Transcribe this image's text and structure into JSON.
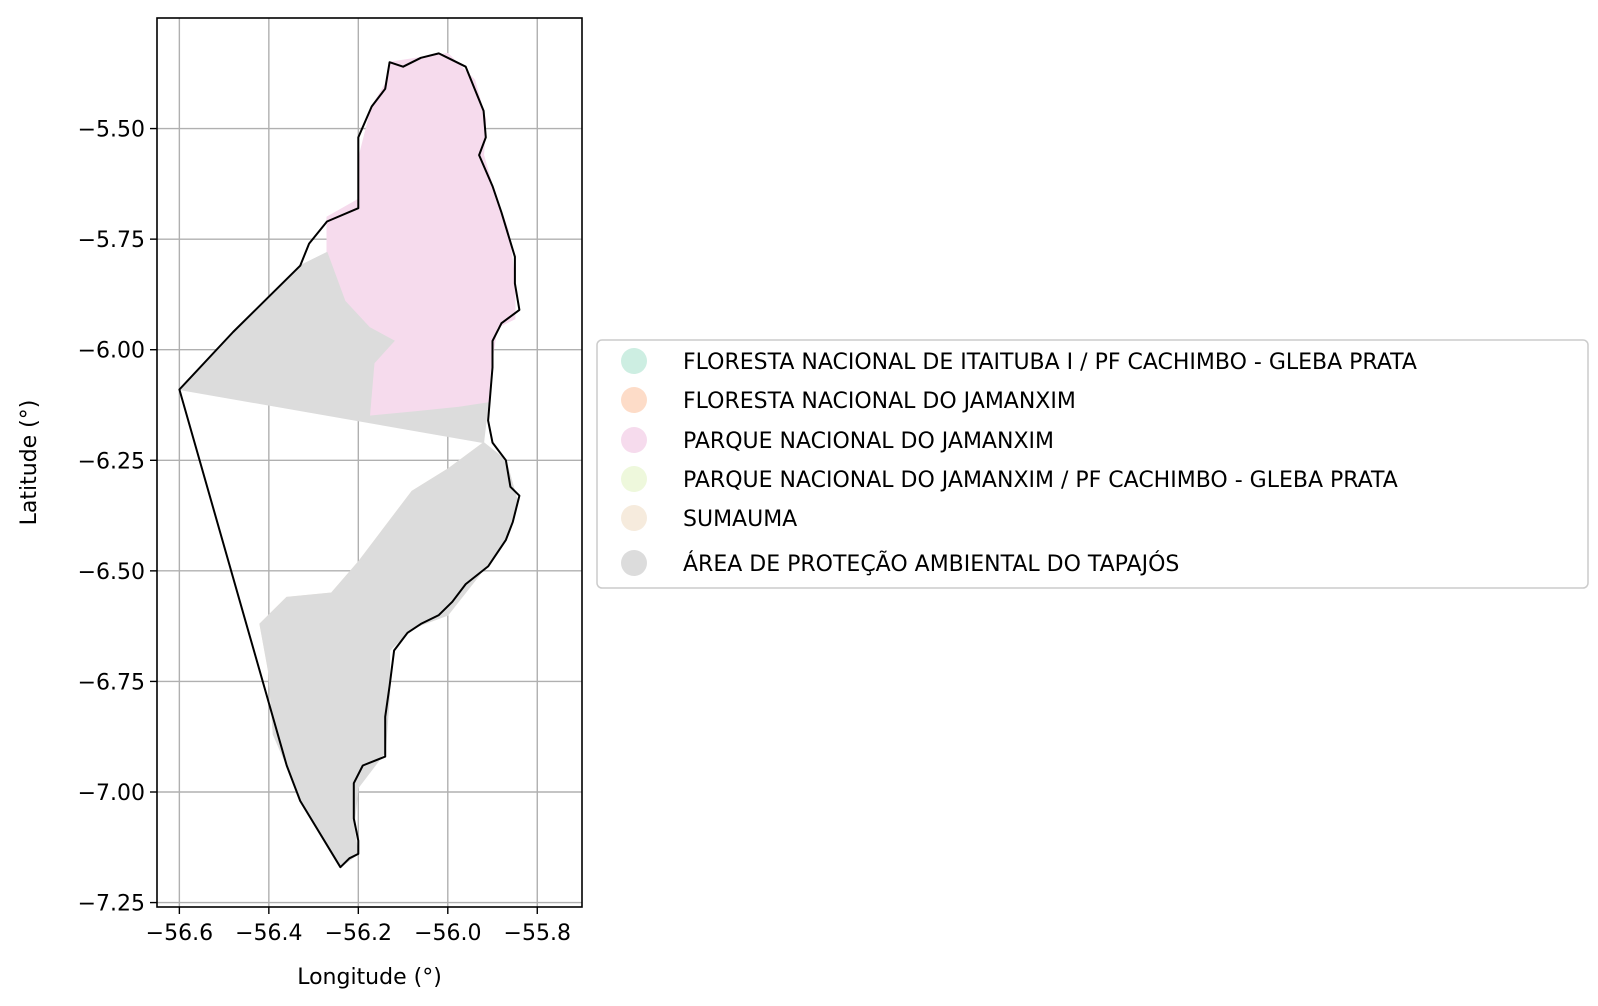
{
  "chart_data": {
    "type": "map",
    "title": "",
    "xlabel": "Longitude (°)",
    "ylabel": "Latitude (°)",
    "xlim": [
      -56.65,
      -55.7
    ],
    "ylim": [
      -7.26,
      -5.25
    ],
    "xticks": [
      -56.6,
      -56.4,
      -56.2,
      -56.0,
      -55.8
    ],
    "xtick_labels": [
      "−56.6",
      "−56.4",
      "−56.2",
      "−56.0",
      "−55.8"
    ],
    "yticks": [
      -5.5,
      -5.75,
      -6.0,
      -6.25,
      -6.5,
      -6.75,
      -7.0,
      -7.25
    ],
    "ytick_labels": [
      "−5.50",
      "−5.75",
      "−6.00",
      "−6.25",
      "−6.50",
      "−6.75",
      "−7.00",
      "−7.25"
    ],
    "grid": true,
    "legend_position": "right-center",
    "categories": [
      {
        "name": "FLORESTA NACIONAL DE ITAITUBA I / PF CACHIMBO - GLEBA PRATA",
        "color": "#cdeee2"
      },
      {
        "name": "FLORESTA NACIONAL DO JAMANXIM",
        "color": "#fddcc8"
      },
      {
        "name": "PARQUE NACIONAL DO JAMANXIM",
        "color": "#f6dbed"
      },
      {
        "name": "PARQUE NACIONAL DO JAMANXIM / PF CACHIMBO - GLEBA PRATA",
        "color": "#eef8dc"
      },
      {
        "name": "SUMAUMA",
        "color": "#f6ebdd"
      },
      {
        "name": "ÁREA DE PROTEÇÃO AMBIENTAL DO TAPAJÓS",
        "color": "#dcdcdc"
      }
    ],
    "regions": [
      {
        "name": "PARQUE NACIONAL DO JAMANXIM",
        "color": "#f6dbed",
        "coords": [
          [
            -56.13,
            -5.35
          ],
          [
            -56.0,
            -5.33
          ],
          [
            -55.94,
            -5.39
          ],
          [
            -55.915,
            -5.48
          ],
          [
            -55.92,
            -5.56
          ],
          [
            -55.9,
            -5.63
          ],
          [
            -55.865,
            -5.73
          ],
          [
            -55.85,
            -5.84
          ],
          [
            -55.85,
            -5.93
          ],
          [
            -55.89,
            -5.95
          ],
          [
            -55.905,
            -6.05
          ],
          [
            -55.91,
            -6.12
          ],
          [
            -55.975,
            -6.13
          ],
          [
            -56.07,
            -6.14
          ],
          [
            -56.175,
            -6.15
          ],
          [
            -56.165,
            -6.03
          ],
          [
            -56.12,
            -5.98
          ],
          [
            -56.175,
            -5.95
          ],
          [
            -56.23,
            -5.89
          ],
          [
            -56.27,
            -5.78
          ],
          [
            -56.27,
            -5.7
          ],
          [
            -56.2,
            -5.66
          ],
          [
            -56.2,
            -5.57
          ],
          [
            -56.17,
            -5.45
          ],
          [
            -56.14,
            -5.4
          ]
        ]
      },
      {
        "name": "SUMAUMA",
        "color": "#f6ebdd",
        "coords": [
          [
            -55.92,
            -6.21
          ],
          [
            -55.87,
            -6.25
          ],
          [
            -55.845,
            -6.34
          ],
          [
            -55.87,
            -6.43
          ],
          [
            -55.93,
            -6.51
          ],
          [
            -56.0,
            -6.6
          ],
          [
            -56.08,
            -6.63
          ],
          [
            -56.13,
            -6.68
          ],
          [
            -56.2,
            -6.73
          ],
          [
            -56.27,
            -6.78
          ],
          [
            -56.32,
            -6.83
          ],
          [
            -56.39,
            -6.87
          ],
          [
            -56.4,
            -6.73
          ],
          [
            -56.42,
            -6.62
          ],
          [
            -56.36,
            -6.56
          ],
          [
            -56.26,
            -6.55
          ],
          [
            -56.2,
            -6.48
          ],
          [
            -56.14,
            -6.4
          ],
          [
            -56.08,
            -6.32
          ],
          [
            -56.0,
            -6.27
          ]
        ]
      },
      {
        "name": "ÁREA DE PROTEÇÃO AMBIENTAL DO TAPAJÓS",
        "color": "#dcdcdc",
        "coords": [
          [
            -56.6,
            -6.09
          ],
          [
            -56.48,
            -5.96
          ],
          [
            -56.33,
            -5.81
          ],
          [
            -56.27,
            -5.78
          ],
          [
            -56.23,
            -5.89
          ],
          [
            -56.175,
            -5.95
          ],
          [
            -56.12,
            -5.98
          ],
          [
            -56.165,
            -6.03
          ],
          [
            -56.175,
            -6.15
          ],
          [
            -56.07,
            -6.14
          ],
          [
            -55.975,
            -6.13
          ],
          [
            -55.91,
            -6.12
          ],
          [
            -55.92,
            -6.21
          ],
          [
            -56.0,
            -6.27
          ],
          [
            -56.08,
            -6.32
          ],
          [
            -56.14,
            -6.4
          ],
          [
            -56.2,
            -6.48
          ],
          [
            -56.26,
            -6.55
          ],
          [
            -56.36,
            -6.56
          ],
          [
            -56.42,
            -6.62
          ],
          [
            -56.4,
            -6.73
          ],
          [
            -56.39,
            -6.87
          ],
          [
            -56.36,
            -6.94
          ],
          [
            -56.33,
            -7.02
          ],
          [
            -56.24,
            -7.17
          ],
          [
            -56.2,
            -7.14
          ],
          [
            -56.21,
            -7.08
          ],
          [
            -56.2,
            -6.99
          ],
          [
            -56.14,
            -6.91
          ],
          [
            -56.13,
            -6.78
          ],
          [
            -56.13,
            -6.68
          ],
          [
            -56.08,
            -6.63
          ],
          [
            -56.0,
            -6.6
          ],
          [
            -55.93,
            -6.51
          ],
          [
            -55.87,
            -6.43
          ],
          [
            -55.845,
            -6.34
          ],
          [
            -55.87,
            -6.25
          ],
          [
            -55.92,
            -6.21
          ]
        ]
      }
    ],
    "outline": [
      [
        -56.6,
        -6.09
      ],
      [
        -56.48,
        -5.96
      ],
      [
        -56.33,
        -5.81
      ],
      [
        -56.31,
        -5.76
      ],
      [
        -56.27,
        -5.71
      ],
      [
        -56.2,
        -5.68
      ],
      [
        -56.2,
        -5.58
      ],
      [
        -56.2,
        -5.52
      ],
      [
        -56.17,
        -5.45
      ],
      [
        -56.14,
        -5.41
      ],
      [
        -56.13,
        -5.35
      ],
      [
        -56.1,
        -5.36
      ],
      [
        -56.06,
        -5.34
      ],
      [
        -56.02,
        -5.33
      ],
      [
        -56.0,
        -5.34
      ],
      [
        -55.96,
        -5.36
      ],
      [
        -55.94,
        -5.41
      ],
      [
        -55.92,
        -5.46
      ],
      [
        -55.915,
        -5.52
      ],
      [
        -55.93,
        -5.56
      ],
      [
        -55.9,
        -5.63
      ],
      [
        -55.88,
        -5.69
      ],
      [
        -55.865,
        -5.74
      ],
      [
        -55.85,
        -5.79
      ],
      [
        -55.85,
        -5.85
      ],
      [
        -55.84,
        -5.91
      ],
      [
        -55.88,
        -5.94
      ],
      [
        -55.9,
        -5.98
      ],
      [
        -55.9,
        -6.04
      ],
      [
        -55.905,
        -6.1
      ],
      [
        -55.91,
        -6.16
      ],
      [
        -55.9,
        -6.21
      ],
      [
        -55.87,
        -6.25
      ],
      [
        -55.86,
        -6.31
      ],
      [
        -55.84,
        -6.33
      ],
      [
        -55.855,
        -6.39
      ],
      [
        -55.87,
        -6.43
      ],
      [
        -55.91,
        -6.49
      ],
      [
        -55.96,
        -6.53
      ],
      [
        -55.99,
        -6.57
      ],
      [
        -56.02,
        -6.6
      ],
      [
        -56.06,
        -6.62
      ],
      [
        -56.09,
        -6.64
      ],
      [
        -56.12,
        -6.68
      ],
      [
        -56.13,
        -6.76
      ],
      [
        -56.14,
        -6.83
      ],
      [
        -56.14,
        -6.92
      ],
      [
        -56.19,
        -6.94
      ],
      [
        -56.21,
        -6.98
      ],
      [
        -56.21,
        -7.06
      ],
      [
        -56.2,
        -7.11
      ],
      [
        -56.2,
        -7.14
      ],
      [
        -56.22,
        -7.15
      ],
      [
        -56.24,
        -7.17
      ],
      [
        -56.33,
        -7.02
      ],
      [
        -56.36,
        -6.94
      ],
      [
        -56.6,
        -6.09
      ]
    ]
  }
}
